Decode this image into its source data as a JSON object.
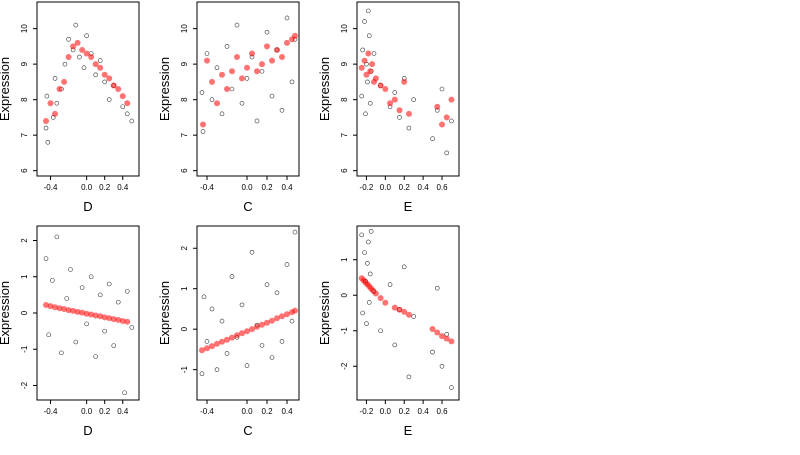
{
  "colors": {
    "observed": "#000000",
    "fitted": "#ff0000",
    "background": "#ffffff"
  },
  "chart_data": [
    {
      "type": "scatter",
      "xlabel": "D",
      "ylabel": "Expression",
      "xlim": [
        -0.55,
        0.58
      ],
      "ylim": [
        5.85,
        10.75
      ],
      "xticks": [
        -0.4,
        0.0,
        0.2,
        0.4
      ],
      "xtick_labels": [
        "-0.4",
        "0.0",
        "0.2",
        "0.4"
      ],
      "yticks": [
        6,
        7,
        8,
        9,
        10
      ],
      "ytick_labels": [
        "6",
        "7",
        "8",
        "9",
        "10"
      ],
      "series": [
        {
          "role": "observed",
          "style": "open-circle",
          "x": [
            -0.45,
            -0.44,
            -0.43,
            -0.37,
            -0.35,
            -0.33,
            -0.28,
            -0.24,
            -0.2,
            -0.15,
            -0.12,
            -0.08,
            -0.03,
            0.0,
            0.05,
            0.1,
            0.15,
            0.2,
            0.25,
            0.3,
            0.4,
            0.45,
            0.5
          ],
          "y": [
            7.2,
            8.1,
            6.8,
            7.5,
            8.6,
            7.9,
            8.3,
            9.0,
            9.7,
            9.4,
            10.1,
            9.2,
            8.9,
            9.8,
            9.3,
            8.7,
            9.1,
            8.5,
            8.0,
            8.4,
            7.8,
            7.6,
            7.4
          ]
        },
        {
          "role": "fitted",
          "style": "filled-circle",
          "x": [
            -0.45,
            -0.4,
            -0.35,
            -0.3,
            -0.25,
            -0.2,
            -0.15,
            -0.1,
            -0.05,
            0.0,
            0.05,
            0.1,
            0.15,
            0.2,
            0.25,
            0.3,
            0.35,
            0.4,
            0.45
          ],
          "y": [
            7.4,
            7.9,
            7.6,
            8.3,
            8.5,
            9.2,
            9.5,
            9.6,
            9.4,
            9.3,
            9.2,
            9.0,
            8.9,
            8.7,
            8.6,
            8.4,
            8.3,
            8.1,
            7.9
          ]
        }
      ]
    },
    {
      "type": "scatter",
      "xlabel": "C",
      "ylabel": "Expression",
      "xlim": [
        -0.5,
        0.52
      ],
      "ylim": [
        5.85,
        10.75
      ],
      "xticks": [
        -0.4,
        0.0,
        0.2,
        0.4
      ],
      "xtick_labels": [
        "-0.4",
        "0.0",
        "0.2",
        "0.4"
      ],
      "yticks": [
        6,
        7,
        8,
        9,
        10
      ],
      "ytick_labels": [
        "6",
        "7",
        "8",
        "9",
        "10"
      ],
      "series": [
        {
          "role": "observed",
          "style": "open-circle",
          "x": [
            -0.45,
            -0.44,
            -0.4,
            -0.35,
            -0.3,
            -0.25,
            -0.2,
            -0.15,
            -0.1,
            -0.05,
            0.0,
            0.05,
            0.1,
            0.15,
            0.2,
            0.25,
            0.3,
            0.35,
            0.4,
            0.45,
            0.48
          ],
          "y": [
            8.2,
            7.1,
            9.3,
            8.0,
            8.9,
            7.6,
            9.5,
            8.3,
            10.1,
            7.9,
            8.6,
            9.2,
            7.4,
            8.8,
            9.9,
            8.1,
            9.4,
            7.7,
            10.3,
            8.5,
            9.7
          ]
        },
        {
          "role": "fitted",
          "style": "filled-circle",
          "x": [
            -0.44,
            -0.4,
            -0.35,
            -0.3,
            -0.25,
            -0.2,
            -0.15,
            -0.1,
            -0.05,
            0.0,
            0.05,
            0.1,
            0.15,
            0.2,
            0.25,
            0.3,
            0.35,
            0.4,
            0.45,
            0.48
          ],
          "y": [
            7.3,
            9.1,
            8.5,
            7.9,
            8.7,
            8.3,
            8.8,
            9.2,
            8.6,
            8.9,
            9.3,
            8.8,
            9.0,
            9.5,
            9.1,
            9.4,
            9.2,
            9.6,
            9.7,
            9.8
          ]
        }
      ]
    },
    {
      "type": "scatter",
      "xlabel": "E",
      "ylabel": "Expression",
      "xlim": [
        -0.3,
        0.78
      ],
      "ylim": [
        5.85,
        10.75
      ],
      "xticks": [
        -0.2,
        0.0,
        0.2,
        0.4,
        0.6
      ],
      "xtick_labels": [
        "-0.2",
        "0.0",
        "0.2",
        "0.4",
        "0.6"
      ],
      "yticks": [
        6,
        7,
        8,
        9,
        10
      ],
      "ytick_labels": [
        "6",
        "7",
        "8",
        "9",
        "10"
      ],
      "series": [
        {
          "role": "observed",
          "style": "open-circle",
          "x": [
            -0.25,
            -0.24,
            -0.22,
            -0.21,
            -0.2,
            -0.19,
            -0.18,
            -0.17,
            -0.16,
            -0.15,
            -0.12,
            -0.05,
            0.05,
            0.1,
            0.15,
            0.2,
            0.25,
            0.3,
            0.5,
            0.55,
            0.6,
            0.65,
            0.7
          ],
          "y": [
            8.1,
            9.4,
            10.2,
            7.6,
            9.0,
            8.5,
            10.5,
            9.8,
            7.9,
            8.8,
            9.3,
            8.4,
            7.8,
            8.2,
            7.5,
            8.6,
            7.2,
            8.0,
            6.9,
            7.7,
            8.3,
            6.5,
            7.4
          ]
        },
        {
          "role": "fitted",
          "style": "filled-circle",
          "x": [
            -0.25,
            -0.22,
            -0.2,
            -0.18,
            -0.16,
            -0.14,
            -0.12,
            -0.1,
            -0.05,
            0.0,
            0.05,
            0.1,
            0.15,
            0.2,
            0.25,
            0.55,
            0.6,
            0.65,
            0.7
          ],
          "y": [
            8.9,
            9.1,
            8.7,
            9.3,
            8.8,
            9.0,
            8.5,
            8.6,
            8.4,
            8.3,
            7.9,
            8.0,
            7.7,
            8.5,
            7.6,
            7.8,
            7.3,
            7.5,
            8.0
          ]
        }
      ]
    },
    {
      "type": "scatter",
      "xlabel": "D",
      "ylabel": "Expression",
      "xlim": [
        -0.55,
        0.58
      ],
      "ylim": [
        -2.4,
        2.4
      ],
      "xticks": [
        -0.4,
        0.0,
        0.2,
        0.4
      ],
      "xtick_labels": [
        "-0.4",
        "0.0",
        "0.2",
        "0.4"
      ],
      "yticks": [
        -2,
        -1,
        0,
        1,
        2
      ],
      "ytick_labels": [
        "-2",
        "-1",
        "0",
        "1",
        "2"
      ],
      "series": [
        {
          "role": "observed",
          "style": "open-circle",
          "x": [
            -0.45,
            -0.42,
            -0.38,
            -0.33,
            -0.28,
            -0.22,
            -0.18,
            -0.12,
            -0.05,
            0.0,
            0.05,
            0.1,
            0.15,
            0.2,
            0.25,
            0.3,
            0.35,
            0.42,
            0.45,
            0.5
          ],
          "y": [
            1.5,
            -0.6,
            0.9,
            2.1,
            -1.1,
            0.4,
            1.2,
            -0.8,
            0.7,
            -0.3,
            1.0,
            -1.2,
            0.5,
            -0.5,
            0.8,
            -0.9,
            0.3,
            -2.2,
            0.6,
            -0.4
          ]
        },
        {
          "role": "fitted",
          "style": "filled-circle",
          "x": [
            -0.45,
            -0.4,
            -0.35,
            -0.3,
            -0.25,
            -0.2,
            -0.15,
            -0.1,
            -0.05,
            0.0,
            0.05,
            0.1,
            0.15,
            0.2,
            0.25,
            0.3,
            0.35,
            0.4,
            0.45
          ],
          "y": [
            0.22,
            0.19,
            0.16,
            0.13,
            0.11,
            0.08,
            0.06,
            0.03,
            0.01,
            -0.02,
            -0.04,
            -0.07,
            -0.09,
            -0.12,
            -0.14,
            -0.17,
            -0.19,
            -0.22,
            -0.24
          ]
        }
      ]
    },
    {
      "type": "scatter",
      "xlabel": "C",
      "ylabel": "Expression",
      "xlim": [
        -0.5,
        0.52
      ],
      "ylim": [
        -1.75,
        2.55
      ],
      "xticks": [
        -0.4,
        0.0,
        0.2,
        0.4
      ],
      "xtick_labels": [
        "-0.4",
        "0.0",
        "0.2",
        "0.4"
      ],
      "yticks": [
        -1,
        0,
        1,
        2
      ],
      "ytick_labels": [
        "-1",
        "0",
        "1",
        "2"
      ],
      "series": [
        {
          "role": "observed",
          "style": "open-circle",
          "x": [
            -0.45,
            -0.43,
            -0.4,
            -0.35,
            -0.3,
            -0.25,
            -0.2,
            -0.15,
            -0.1,
            -0.05,
            0.0,
            0.05,
            0.1,
            0.15,
            0.2,
            0.25,
            0.3,
            0.35,
            0.4,
            0.45,
            0.48
          ],
          "y": [
            -1.1,
            0.8,
            -0.3,
            0.5,
            -1.0,
            0.2,
            -0.6,
            1.3,
            -0.2,
            0.6,
            -0.9,
            1.9,
            0.1,
            -0.4,
            1.1,
            -0.7,
            0.9,
            -0.3,
            1.6,
            0.2,
            2.4
          ]
        },
        {
          "role": "fitted",
          "style": "filled-circle",
          "x": [
            -0.45,
            -0.4,
            -0.35,
            -0.3,
            -0.25,
            -0.2,
            -0.15,
            -0.1,
            -0.05,
            0.0,
            0.05,
            0.1,
            0.15,
            0.2,
            0.25,
            0.3,
            0.35,
            0.4,
            0.45,
            0.48
          ],
          "y": [
            -0.52,
            -0.47,
            -0.42,
            -0.36,
            -0.31,
            -0.26,
            -0.21,
            -0.15,
            -0.1,
            -0.05,
            0.0,
            0.06,
            0.11,
            0.16,
            0.21,
            0.27,
            0.32,
            0.37,
            0.42,
            0.46
          ]
        }
      ]
    },
    {
      "type": "scatter",
      "xlabel": "E",
      "ylabel": "Expression",
      "xlim": [
        -0.3,
        0.78
      ],
      "ylim": [
        -2.95,
        1.95
      ],
      "xticks": [
        -0.2,
        0.0,
        0.2,
        0.4,
        0.6
      ],
      "xtick_labels": [
        "-0.2",
        "0.0",
        "0.2",
        "0.4",
        "0.6"
      ],
      "yticks": [
        -2,
        -1,
        0,
        1
      ],
      "ytick_labels": [
        "-2",
        "-1",
        "0",
        "1"
      ],
      "series": [
        {
          "role": "observed",
          "style": "open-circle",
          "x": [
            -0.25,
            -0.24,
            -0.22,
            -0.21,
            -0.2,
            -0.19,
            -0.18,
            -0.17,
            -0.16,
            -0.15,
            -0.12,
            -0.05,
            0.05,
            0.1,
            0.15,
            0.2,
            0.25,
            0.3,
            0.5,
            0.55,
            0.6,
            0.65,
            0.7
          ],
          "y": [
            1.7,
            -0.5,
            1.2,
            0.4,
            -0.8,
            0.9,
            1.5,
            -0.2,
            0.6,
            1.8,
            0.1,
            -1.0,
            0.3,
            -1.4,
            -0.4,
            0.8,
            -2.3,
            -0.6,
            -1.6,
            0.2,
            -2.0,
            -1.1,
            -2.6
          ]
        },
        {
          "role": "fitted",
          "style": "filled-circle",
          "x": [
            -0.25,
            -0.23,
            -0.21,
            -0.19,
            -0.17,
            -0.15,
            -0.13,
            -0.1,
            -0.05,
            0.0,
            0.1,
            0.15,
            0.2,
            0.25,
            0.5,
            0.55,
            0.6,
            0.65,
            0.7
          ],
          "y": [
            0.48,
            0.42,
            0.36,
            0.31,
            0.25,
            0.19,
            0.13,
            0.05,
            -0.08,
            -0.21,
            -0.35,
            -0.41,
            -0.47,
            -0.55,
            -0.95,
            -1.05,
            -1.15,
            -1.22,
            -1.3
          ]
        }
      ]
    }
  ]
}
